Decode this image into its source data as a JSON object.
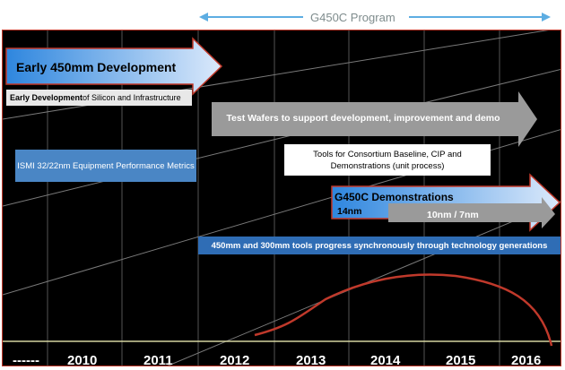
{
  "header": {
    "program_label": "G450C Program"
  },
  "items": {
    "early_450_title": "Early 450mm Development",
    "early_dev_bold": "Early Development",
    "early_dev_rest": " of Silicon and Infrastructure",
    "test_wafers": "Test Wafers to support development, improvement and demo",
    "ismi_metrics": "ISMI 32/22nm Equipment Performance Metrics",
    "consortium_tools": "Tools for Consortium Baseline, CIP and Demonstrations (unit process)",
    "demos_title": "G450C Demonstrations",
    "demos_14nm": "14nm",
    "demos_10_7": "10nm / 7nm",
    "progress_note": "450mm and 300mm tools progress synchronously through technology generations"
  },
  "timeline": {
    "placeholder": "------",
    "years": [
      "2010",
      "2011",
      "2012",
      "2013",
      "2014",
      "2015",
      "2016"
    ]
  },
  "colors": {
    "background": "#000000",
    "frame_border": "#c0392b",
    "program_arrow": "#5dade2",
    "blue_gradient_start": "#2e86de",
    "blue_gradient_end": "#dbe9fb",
    "grey_arrow": "#9a9a9a",
    "ismi_box": "#4a86c5",
    "progress_bar": "#2f6db5",
    "curve": "#c0392b"
  }
}
